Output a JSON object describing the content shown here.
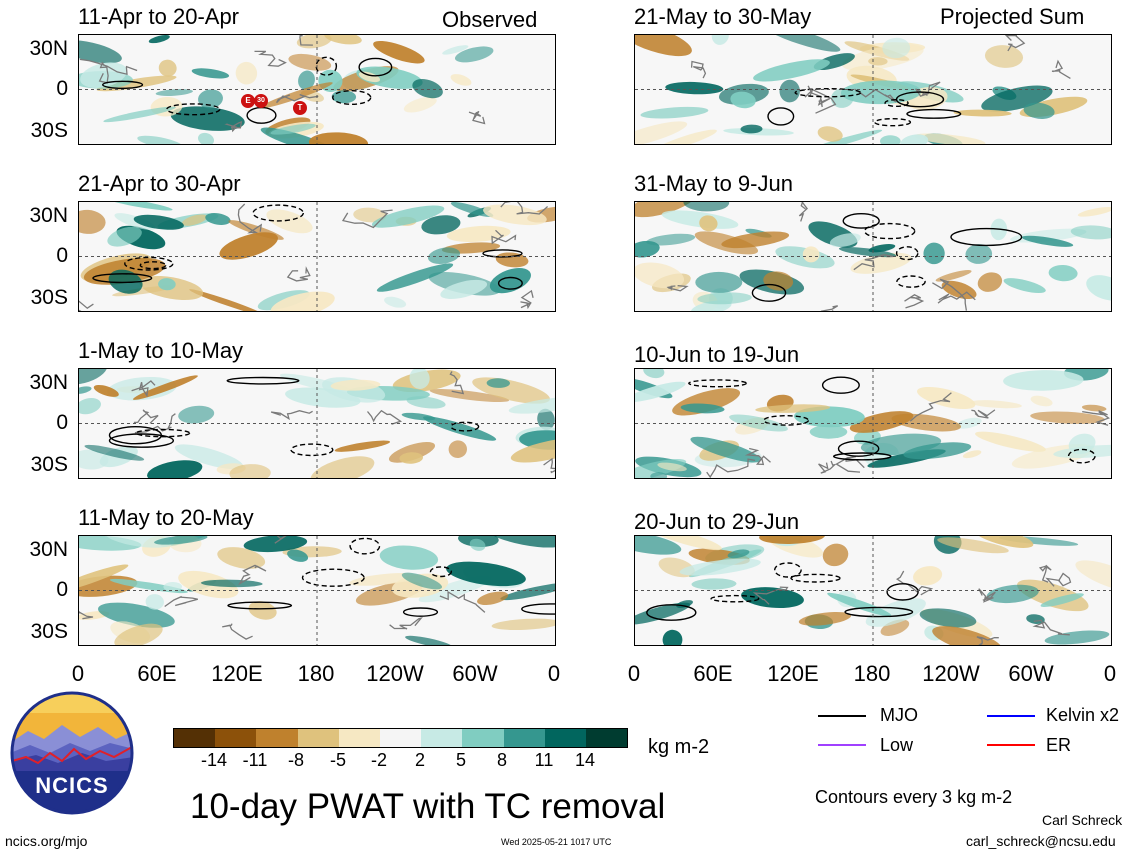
{
  "header": {
    "observed_label": "Observed",
    "projected_label": "Projected Sum"
  },
  "left_panels": [
    {
      "title": "11-Apr to 20-Apr"
    },
    {
      "title": "21-Apr to 30-Apr"
    },
    {
      "title": "1-May to 10-May"
    },
    {
      "title": "11-May to 20-May"
    }
  ],
  "right_panels": [
    {
      "title": "21-May to 30-May"
    },
    {
      "title": "31-May to 9-Jun"
    },
    {
      "title": "10-Jun to 19-Jun"
    },
    {
      "title": "20-Jun to 29-Jun"
    }
  ],
  "lat_labels": [
    "30N",
    "0",
    "30S"
  ],
  "lon_labels": [
    "0",
    "60E",
    "120E",
    "180",
    "120W",
    "60W",
    "0"
  ],
  "tc_markers": [
    "E",
    "30",
    "T"
  ],
  "colorbar": {
    "labels": [
      "-14",
      "-11",
      "-8",
      "-5",
      "-2",
      "2",
      "5",
      "8",
      "11",
      "14"
    ],
    "colors": [
      "#543005",
      "#8c510a",
      "#bf812d",
      "#dfc27d",
      "#f6e8c3",
      "#f5f5f5",
      "#c7eae5",
      "#80cdc1",
      "#35978f",
      "#01665e",
      "#003c30"
    ],
    "units": "kg m-2"
  },
  "legend": {
    "items": [
      {
        "label": "MJO",
        "color": "#000000"
      },
      {
        "label": "Kelvin x2",
        "color": "#0000ff"
      },
      {
        "label": "Low",
        "color": "#a040ff"
      },
      {
        "label": "ER",
        "color": "#ff0000"
      }
    ],
    "contours_note": "Contours every 3 kg m-2"
  },
  "logo_text": "NCICS",
  "main_title": "10-day PWAT with TC removal",
  "footer": {
    "left": "ncics.org/mjo",
    "center": "Wed 2025-05-21 1017 UTC",
    "author": "Carl Schreck",
    "email": "carl_schreck@ncsu.edu"
  }
}
